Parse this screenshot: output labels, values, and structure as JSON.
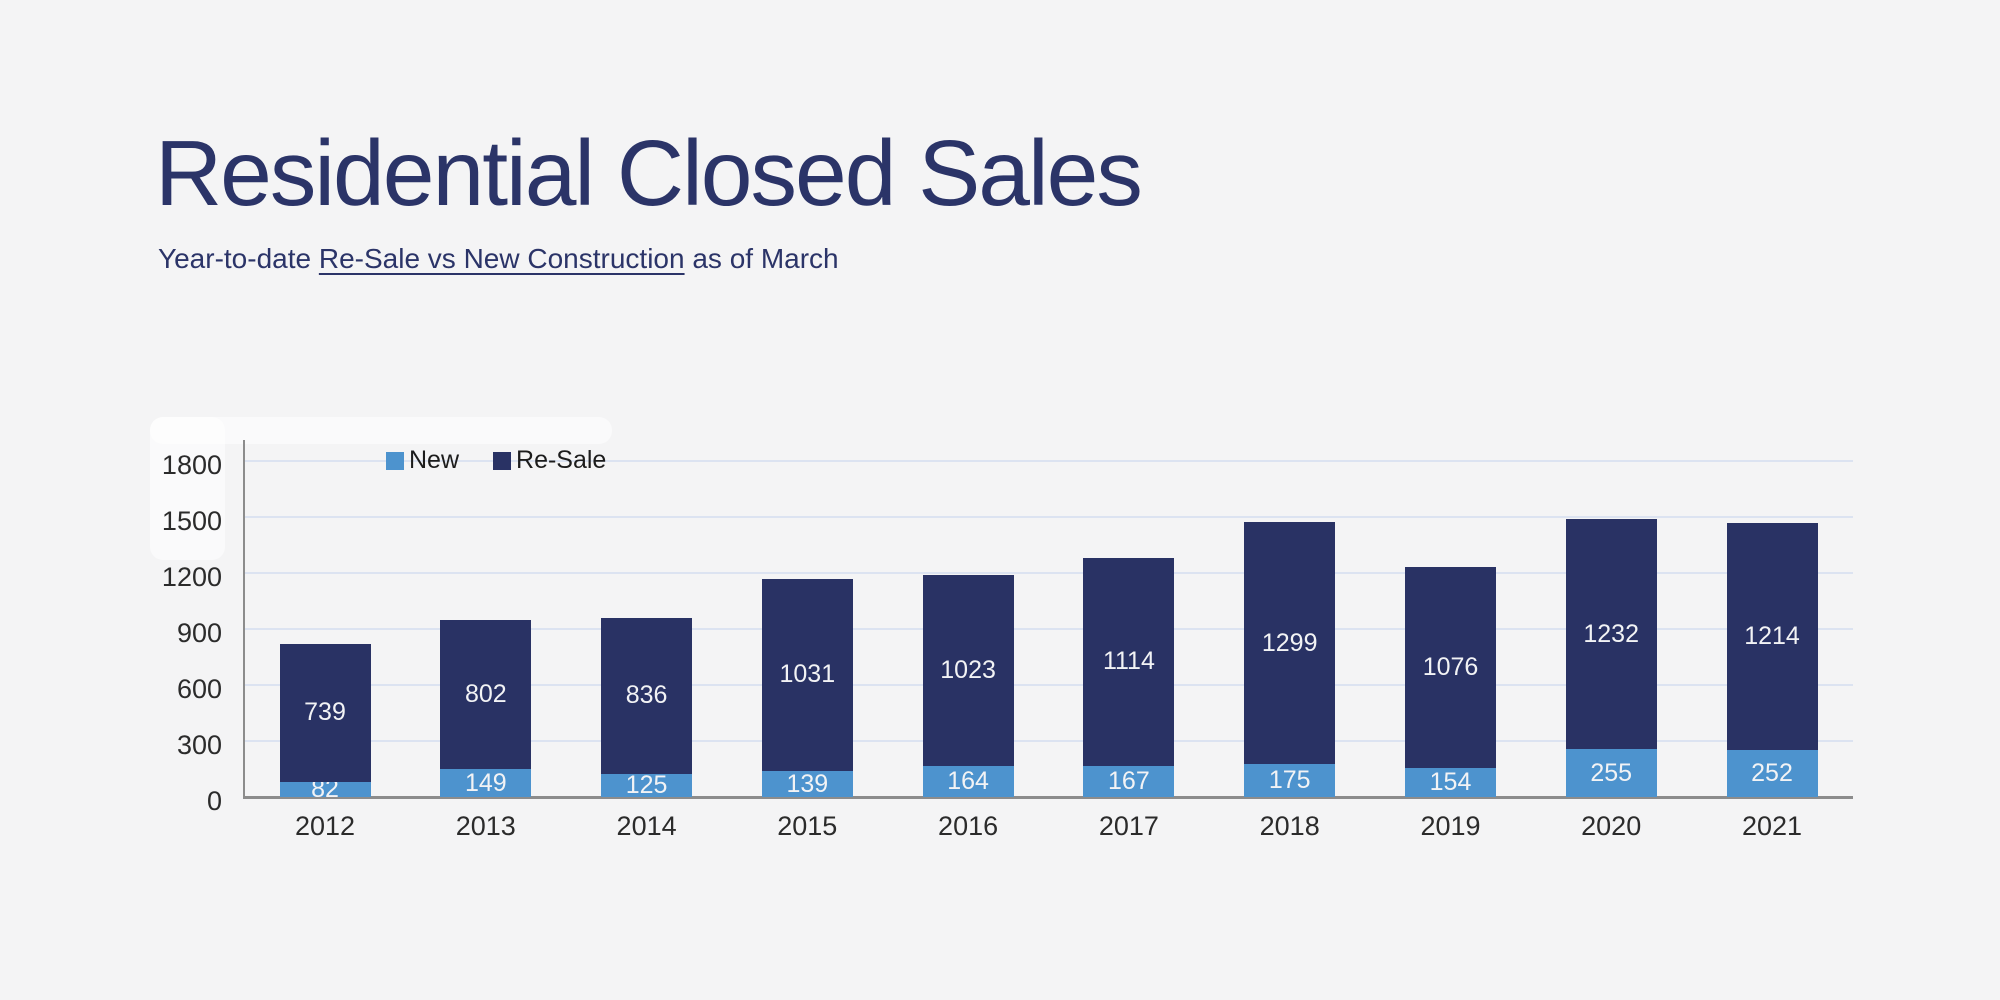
{
  "page": {
    "background": "#f4f4f5"
  },
  "header": {
    "title": "Residential Closed Sales",
    "title_color": "#2b3468",
    "subtitle_prefix": "Year-to-date ",
    "subtitle_underlined": "Re-Sale vs New Construction",
    "subtitle_suffix": " as of March"
  },
  "chart_data": {
    "type": "bar",
    "stacked": true,
    "title": "",
    "xlabel": "",
    "ylabel": "",
    "categories": [
      "2012",
      "2013",
      "2014",
      "2015",
      "2016",
      "2017",
      "2018",
      "2019",
      "2020",
      "2021"
    ],
    "series": [
      {
        "name": "New",
        "color": "#4d93ce",
        "values": [
          82,
          149,
          125,
          139,
          164,
          167,
          175,
          154,
          255,
          252
        ]
      },
      {
        "name": "Re-Sale",
        "color": "#293264",
        "values": [
          739,
          802,
          836,
          1031,
          1023,
          1114,
          1299,
          1076,
          1232,
          1214
        ]
      }
    ],
    "totals": [
      821,
      951,
      961,
      1170,
      1187,
      1281,
      1474,
      1230,
      1487,
      1466
    ],
    "ylim": [
      0,
      1800
    ],
    "yticks": [
      0,
      300,
      600,
      900,
      1200,
      1500,
      1800
    ],
    "grid": true,
    "legend_position": "top-inside-left",
    "colors": {
      "gridline": "#dce3f1",
      "axis": "#8c8c8c",
      "tick_label": "#2b2b2b",
      "bar_label": "#f2f3f5"
    }
  }
}
